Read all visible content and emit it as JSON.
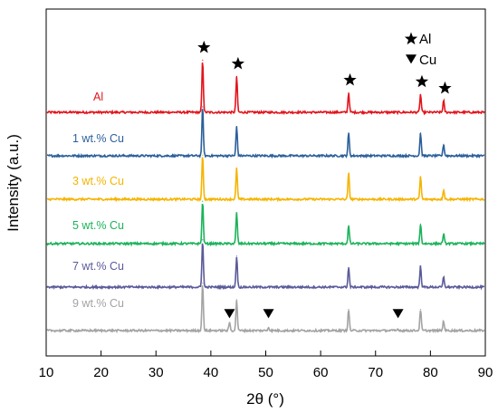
{
  "chart_data": {
    "type": "line",
    "title": "",
    "xlabel": "2θ (°)",
    "ylabel": "Intensity (a.u.)",
    "xlim": [
      10,
      90
    ],
    "xticks": [
      "10",
      "20",
      "30",
      "40",
      "50",
      "60",
      "70",
      "80",
      "90"
    ],
    "yticks_shown": false,
    "grid": false,
    "legend": {
      "placement": "top-right",
      "entries": [
        {
          "symbol": "star",
          "label": "Al"
        },
        {
          "symbol": "triangle-down",
          "label": "Cu"
        }
      ]
    },
    "series": [
      {
        "name": "Al",
        "color": "#e3141c",
        "peaks": [
          {
            "x": 38.5,
            "h": 0.64
          },
          {
            "x": 44.7,
            "h": 0.44
          },
          {
            "x": 65.1,
            "h": 0.24
          },
          {
            "x": 78.2,
            "h": 0.22
          },
          {
            "x": 82.4,
            "h": 0.14
          }
        ]
      },
      {
        "name": "1 wt.% Cu",
        "color": "#2b5f9a",
        "peaks": [
          {
            "x": 38.5,
            "h": 0.6
          },
          {
            "x": 44.7,
            "h": 0.36
          },
          {
            "x": 65.1,
            "h": 0.28
          },
          {
            "x": 78.2,
            "h": 0.28
          },
          {
            "x": 82.4,
            "h": 0.14
          }
        ]
      },
      {
        "name": "3 wt.% Cu",
        "color": "#f5b400",
        "peaks": [
          {
            "x": 38.5,
            "h": 0.54
          },
          {
            "x": 44.7,
            "h": 0.38
          },
          {
            "x": 65.1,
            "h": 0.32
          },
          {
            "x": 78.2,
            "h": 0.28
          },
          {
            "x": 82.4,
            "h": 0.12
          }
        ]
      },
      {
        "name": "5 wt.% Cu",
        "color": "#1bb35a",
        "peaks": [
          {
            "x": 38.5,
            "h": 0.52
          },
          {
            "x": 44.7,
            "h": 0.38
          },
          {
            "x": 65.1,
            "h": 0.22
          },
          {
            "x": 78.2,
            "h": 0.24
          },
          {
            "x": 82.4,
            "h": 0.12
          }
        ]
      },
      {
        "name": "7 wt.% Cu",
        "color": "#5a5a9a",
        "peaks": [
          {
            "x": 38.5,
            "h": 0.58
          },
          {
            "x": 44.7,
            "h": 0.38
          },
          {
            "x": 65.1,
            "h": 0.24
          },
          {
            "x": 78.2,
            "h": 0.26
          },
          {
            "x": 82.4,
            "h": 0.12
          }
        ]
      },
      {
        "name": "9 wt.% Cu",
        "color": "#a3a3a3",
        "peaks": [
          {
            "x": 38.5,
            "h": 0.58
          },
          {
            "x": 43.4,
            "h": 0.1
          },
          {
            "x": 44.7,
            "h": 0.38
          },
          {
            "x": 50.5,
            "h": 0.04
          },
          {
            "x": 65.1,
            "h": 0.26
          },
          {
            "x": 74.1,
            "h": 0.02
          },
          {
            "x": 78.2,
            "h": 0.26
          },
          {
            "x": 82.4,
            "h": 0.12
          }
        ]
      }
    ],
    "annotations": {
      "al_peaks": [
        38.5,
        44.7,
        65.1,
        78.2,
        82.4
      ],
      "cu_peaks": [
        43.4,
        50.5,
        74.1
      ]
    }
  }
}
